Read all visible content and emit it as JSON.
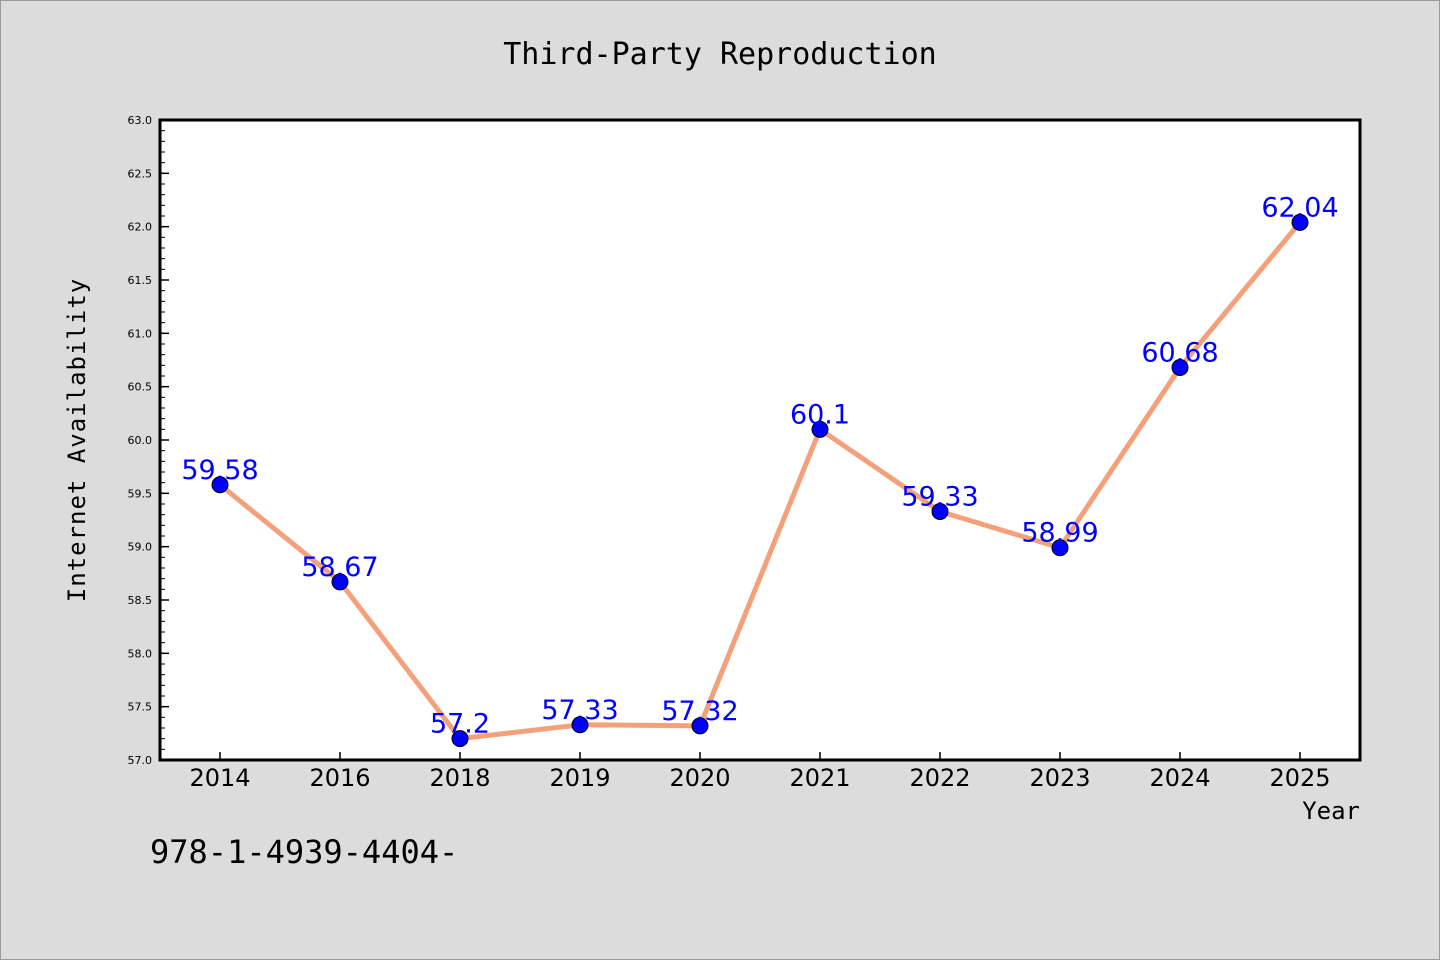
{
  "chart_data": {
    "type": "line",
    "title": "Third-Party Reproduction",
    "xlabel": "Year",
    "ylabel": "Internet Availability",
    "categories": [
      "2014",
      "2016",
      "2018",
      "2019",
      "2020",
      "2021",
      "2022",
      "2023",
      "2024",
      "2025"
    ],
    "series": [
      {
        "values": [
          59.58,
          58.67,
          57.2,
          57.33,
          57.32,
          60.1,
          59.33,
          58.99,
          60.68,
          62.04
        ],
        "data_labels": [
          "59.58",
          "58.67",
          "57.2",
          "57.33",
          "57.32",
          "60.1",
          "59.33",
          "58.99",
          "60.68",
          "62.04"
        ],
        "line_color": "#f4a07a",
        "marker_color": "#0000ff"
      }
    ],
    "ylim": [
      57.0,
      63.0
    ],
    "yticks": [
      "57.0",
      "57.5",
      "58.0",
      "58.5",
      "59.0",
      "59.5",
      "60.0",
      "60.5",
      "61.0",
      "61.5",
      "62.0",
      "62.5",
      "63.0"
    ],
    "grid": false,
    "legend": "none"
  },
  "footnote": "978-1-4939-4404-",
  "colors": {
    "background": "#dcdcdc",
    "plot_background": "#ffffff",
    "line": "#f4a07a",
    "marker": "#0000ff",
    "data_label": "#0000ff"
  }
}
